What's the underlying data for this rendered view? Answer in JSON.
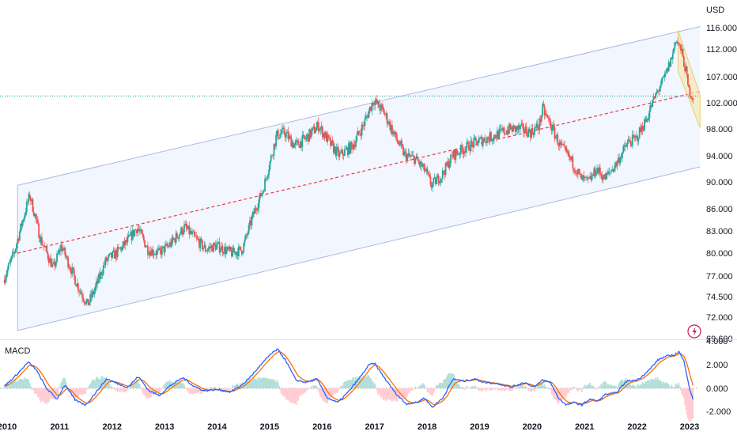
{
  "chart_data": [
    {
      "type": "candlestick",
      "currency": "USD",
      "y_ticks": [
        "116.000",
        "112.000",
        "107.000",
        "102.000",
        "98.000",
        "94.000",
        "90.000",
        "86.000",
        "83.000",
        "80.000",
        "77.000",
        "74.500",
        "72.000",
        "69.600"
      ],
      "ylim": [
        69.6,
        117.5
      ],
      "x_ticks": [
        "2010",
        "2011",
        "2012",
        "2013",
        "2014",
        "2015",
        "2016",
        "2017",
        "2018",
        "2019",
        "2020",
        "2021",
        "2022",
        "2023"
      ],
      "xlim": [
        2009.93,
        2023.2
      ],
      "key_points": [
        [
          2009.95,
          76.5
        ],
        [
          2010.15,
          80.0
        ],
        [
          2010.45,
          88.0
        ],
        [
          2010.65,
          82.0
        ],
        [
          2010.9,
          78.0
        ],
        [
          2011.05,
          81.0
        ],
        [
          2011.35,
          76.0
        ],
        [
          2011.55,
          73.5
        ],
        [
          2011.7,
          75.5
        ],
        [
          2011.9,
          79.0
        ],
        [
          2012.1,
          80.0
        ],
        [
          2012.3,
          81.5
        ],
        [
          2012.5,
          83.5
        ],
        [
          2012.7,
          80.5
        ],
        [
          2012.9,
          80.0
        ],
        [
          2013.1,
          81.0
        ],
        [
          2013.4,
          83.5
        ],
        [
          2013.6,
          82.0
        ],
        [
          2013.8,
          80.5
        ],
        [
          2014.0,
          81.0
        ],
        [
          2014.3,
          80.0
        ],
        [
          2014.5,
          80.5
        ],
        [
          2014.7,
          85.0
        ],
        [
          2014.9,
          89.0
        ],
        [
          2015.15,
          97.0
        ],
        [
          2015.3,
          97.5
        ],
        [
          2015.5,
          95.5
        ],
        [
          2015.7,
          96.5
        ],
        [
          2015.95,
          98.5
        ],
        [
          2016.2,
          95.5
        ],
        [
          2016.35,
          94.0
        ],
        [
          2016.6,
          95.5
        ],
        [
          2016.8,
          98.5
        ],
        [
          2017.0,
          102.5
        ],
        [
          2017.2,
          100.5
        ],
        [
          2017.4,
          97.0
        ],
        [
          2017.6,
          94.0
        ],
        [
          2017.8,
          93.5
        ],
        [
          2018.0,
          91.5
        ],
        [
          2018.1,
          89.5
        ],
        [
          2018.3,
          91.0
        ],
        [
          2018.5,
          94.0
        ],
        [
          2018.7,
          95.0
        ],
        [
          2018.95,
          96.0
        ],
        [
          2019.3,
          97.0
        ],
        [
          2019.6,
          98.0
        ],
        [
          2019.8,
          98.0
        ],
        [
          2020.0,
          97.5
        ],
        [
          2020.15,
          98.5
        ],
        [
          2020.22,
          101.0
        ],
        [
          2020.35,
          99.0
        ],
        [
          2020.55,
          95.5
        ],
        [
          2020.75,
          93.5
        ],
        [
          2020.95,
          90.5
        ],
        [
          2021.1,
          90.0
        ],
        [
          2021.25,
          92.0
        ],
        [
          2021.4,
          90.5
        ],
        [
          2021.6,
          92.5
        ],
        [
          2021.85,
          96.0
        ],
        [
          2022.0,
          96.5
        ],
        [
          2022.2,
          99.5
        ],
        [
          2022.4,
          104.0
        ],
        [
          2022.55,
          107.0
        ],
        [
          2022.7,
          111.0
        ],
        [
          2022.75,
          114.0
        ],
        [
          2022.85,
          112.0
        ],
        [
          2022.95,
          108.0
        ],
        [
          2023.0,
          104.5
        ],
        [
          2023.08,
          103.0
        ]
      ],
      "channel_upper": [
        [
          2010.2,
          89.5
        ],
        [
          2023.2,
          116.2
        ]
      ],
      "channel_lower": [
        [
          2010.2,
          70.5
        ],
        [
          2023.2,
          92.3
        ]
      ],
      "channel_mid": [
        [
          2010.2,
          80.0
        ],
        [
          2023.2,
          104.2
        ]
      ],
      "horizontal_level": 103.3,
      "wedge": {
        "upper": [
          [
            2022.78,
            115.5
          ],
          [
            2023.2,
            103.5
          ]
        ],
        "lower": [
          [
            2022.78,
            108.0
          ],
          [
            2023.2,
            98.2
          ]
        ]
      },
      "colors": {
        "up": "#26a69a",
        "down": "#ef5350",
        "channel_fill": "#2962ff",
        "mid_line": "#f23645",
        "level": "#089981",
        "wedge_fill": "#f7e7a6"
      }
    },
    {
      "type": "macd",
      "title": "MACD",
      "y_ticks": [
        "4.000",
        "2.000",
        "0.000",
        "-2.000"
      ],
      "ylim": [
        -2.3,
        4.3
      ],
      "macd_points": [
        [
          2009.95,
          0.2
        ],
        [
          2010.15,
          1.0
        ],
        [
          2010.4,
          2.2
        ],
        [
          2010.55,
          1.6
        ],
        [
          2010.75,
          0.0
        ],
        [
          2010.95,
          -0.9
        ],
        [
          2011.1,
          0.3
        ],
        [
          2011.3,
          -1.0
        ],
        [
          2011.5,
          -1.4
        ],
        [
          2011.7,
          -0.3
        ],
        [
          2011.9,
          0.8
        ],
        [
          2012.1,
          0.4
        ],
        [
          2012.3,
          0.1
        ],
        [
          2012.5,
          1.0
        ],
        [
          2012.7,
          -0.2
        ],
        [
          2012.9,
          -0.6
        ],
        [
          2013.1,
          0.2
        ],
        [
          2013.35,
          0.9
        ],
        [
          2013.55,
          0.2
        ],
        [
          2013.75,
          -0.2
        ],
        [
          2014.0,
          -0.1
        ],
        [
          2014.25,
          -0.3
        ],
        [
          2014.45,
          0.2
        ],
        [
          2014.6,
          0.8
        ],
        [
          2014.8,
          1.8
        ],
        [
          2015.0,
          2.8
        ],
        [
          2015.15,
          3.3
        ],
        [
          2015.3,
          2.4
        ],
        [
          2015.5,
          0.7
        ],
        [
          2015.7,
          0.5
        ],
        [
          2015.9,
          0.8
        ],
        [
          2016.1,
          -0.8
        ],
        [
          2016.3,
          -1.2
        ],
        [
          2016.5,
          -0.3
        ],
        [
          2016.7,
          0.8
        ],
        [
          2016.9,
          2.0
        ],
        [
          2017.0,
          2.1
        ],
        [
          2017.2,
          0.8
        ],
        [
          2017.4,
          -0.4
        ],
        [
          2017.6,
          -1.3
        ],
        [
          2017.8,
          -1.2
        ],
        [
          2017.95,
          -0.8
        ],
        [
          2018.1,
          -1.6
        ],
        [
          2018.3,
          -0.8
        ],
        [
          2018.5,
          0.8
        ],
        [
          2018.7,
          0.6
        ],
        [
          2018.9,
          0.8
        ],
        [
          2019.1,
          0.5
        ],
        [
          2019.35,
          0.4
        ],
        [
          2019.6,
          0.1
        ],
        [
          2019.85,
          0.5
        ],
        [
          2020.05,
          0.1
        ],
        [
          2020.2,
          0.7
        ],
        [
          2020.35,
          0.5
        ],
        [
          2020.5,
          -0.8
        ],
        [
          2020.65,
          -1.4
        ],
        [
          2020.8,
          -1.2
        ],
        [
          2020.95,
          -1.4
        ],
        [
          2021.1,
          -0.9
        ],
        [
          2021.25,
          -1.1
        ],
        [
          2021.4,
          -0.5
        ],
        [
          2021.6,
          -0.4
        ],
        [
          2021.8,
          0.6
        ],
        [
          2022.0,
          0.7
        ],
        [
          2022.2,
          1.4
        ],
        [
          2022.4,
          2.4
        ],
        [
          2022.55,
          2.7
        ],
        [
          2022.7,
          2.8
        ],
        [
          2022.8,
          3.1
        ],
        [
          2022.9,
          2.2
        ],
        [
          2023.0,
          0.0
        ],
        [
          2023.08,
          -1.2
        ]
      ],
      "colors": {
        "macd": "#2962ff",
        "signal": "#ff6d00",
        "hist_up": "#b2dfdb",
        "hist_down": "#ffcdd2"
      }
    }
  ]
}
